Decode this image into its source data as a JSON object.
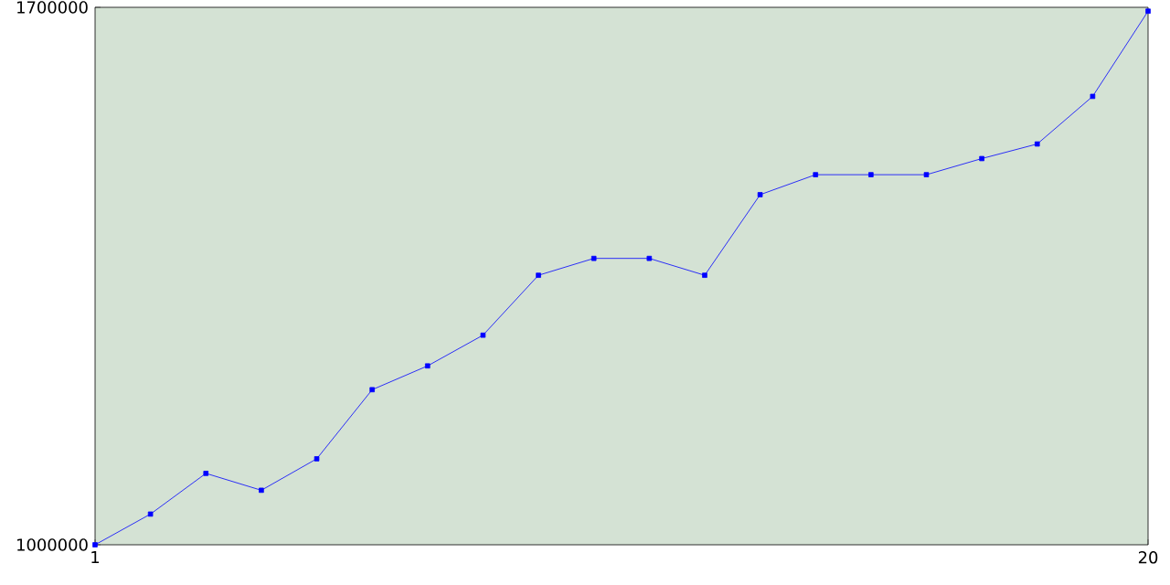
{
  "chart_data": {
    "type": "line",
    "x": [
      1,
      2,
      3,
      4,
      5,
      6,
      7,
      8,
      9,
      10,
      11,
      12,
      13,
      14,
      15,
      16,
      17,
      18,
      19,
      20
    ],
    "values": [
      1000000,
      1040000,
      1093000,
      1071000,
      1112000,
      1202000,
      1233000,
      1273000,
      1351000,
      1373000,
      1373000,
      1351000,
      1456000,
      1482000,
      1482000,
      1482000,
      1503000,
      1522000,
      1584000,
      1695000
    ],
    "color": "#0000ff",
    "marker": "square",
    "line_style": "solid",
    "xlim": [
      1,
      20
    ],
    "ylim": [
      1000000,
      1700000
    ],
    "xticks": [
      1,
      20
    ],
    "yticks": [
      1000000,
      1700000
    ]
  }
}
